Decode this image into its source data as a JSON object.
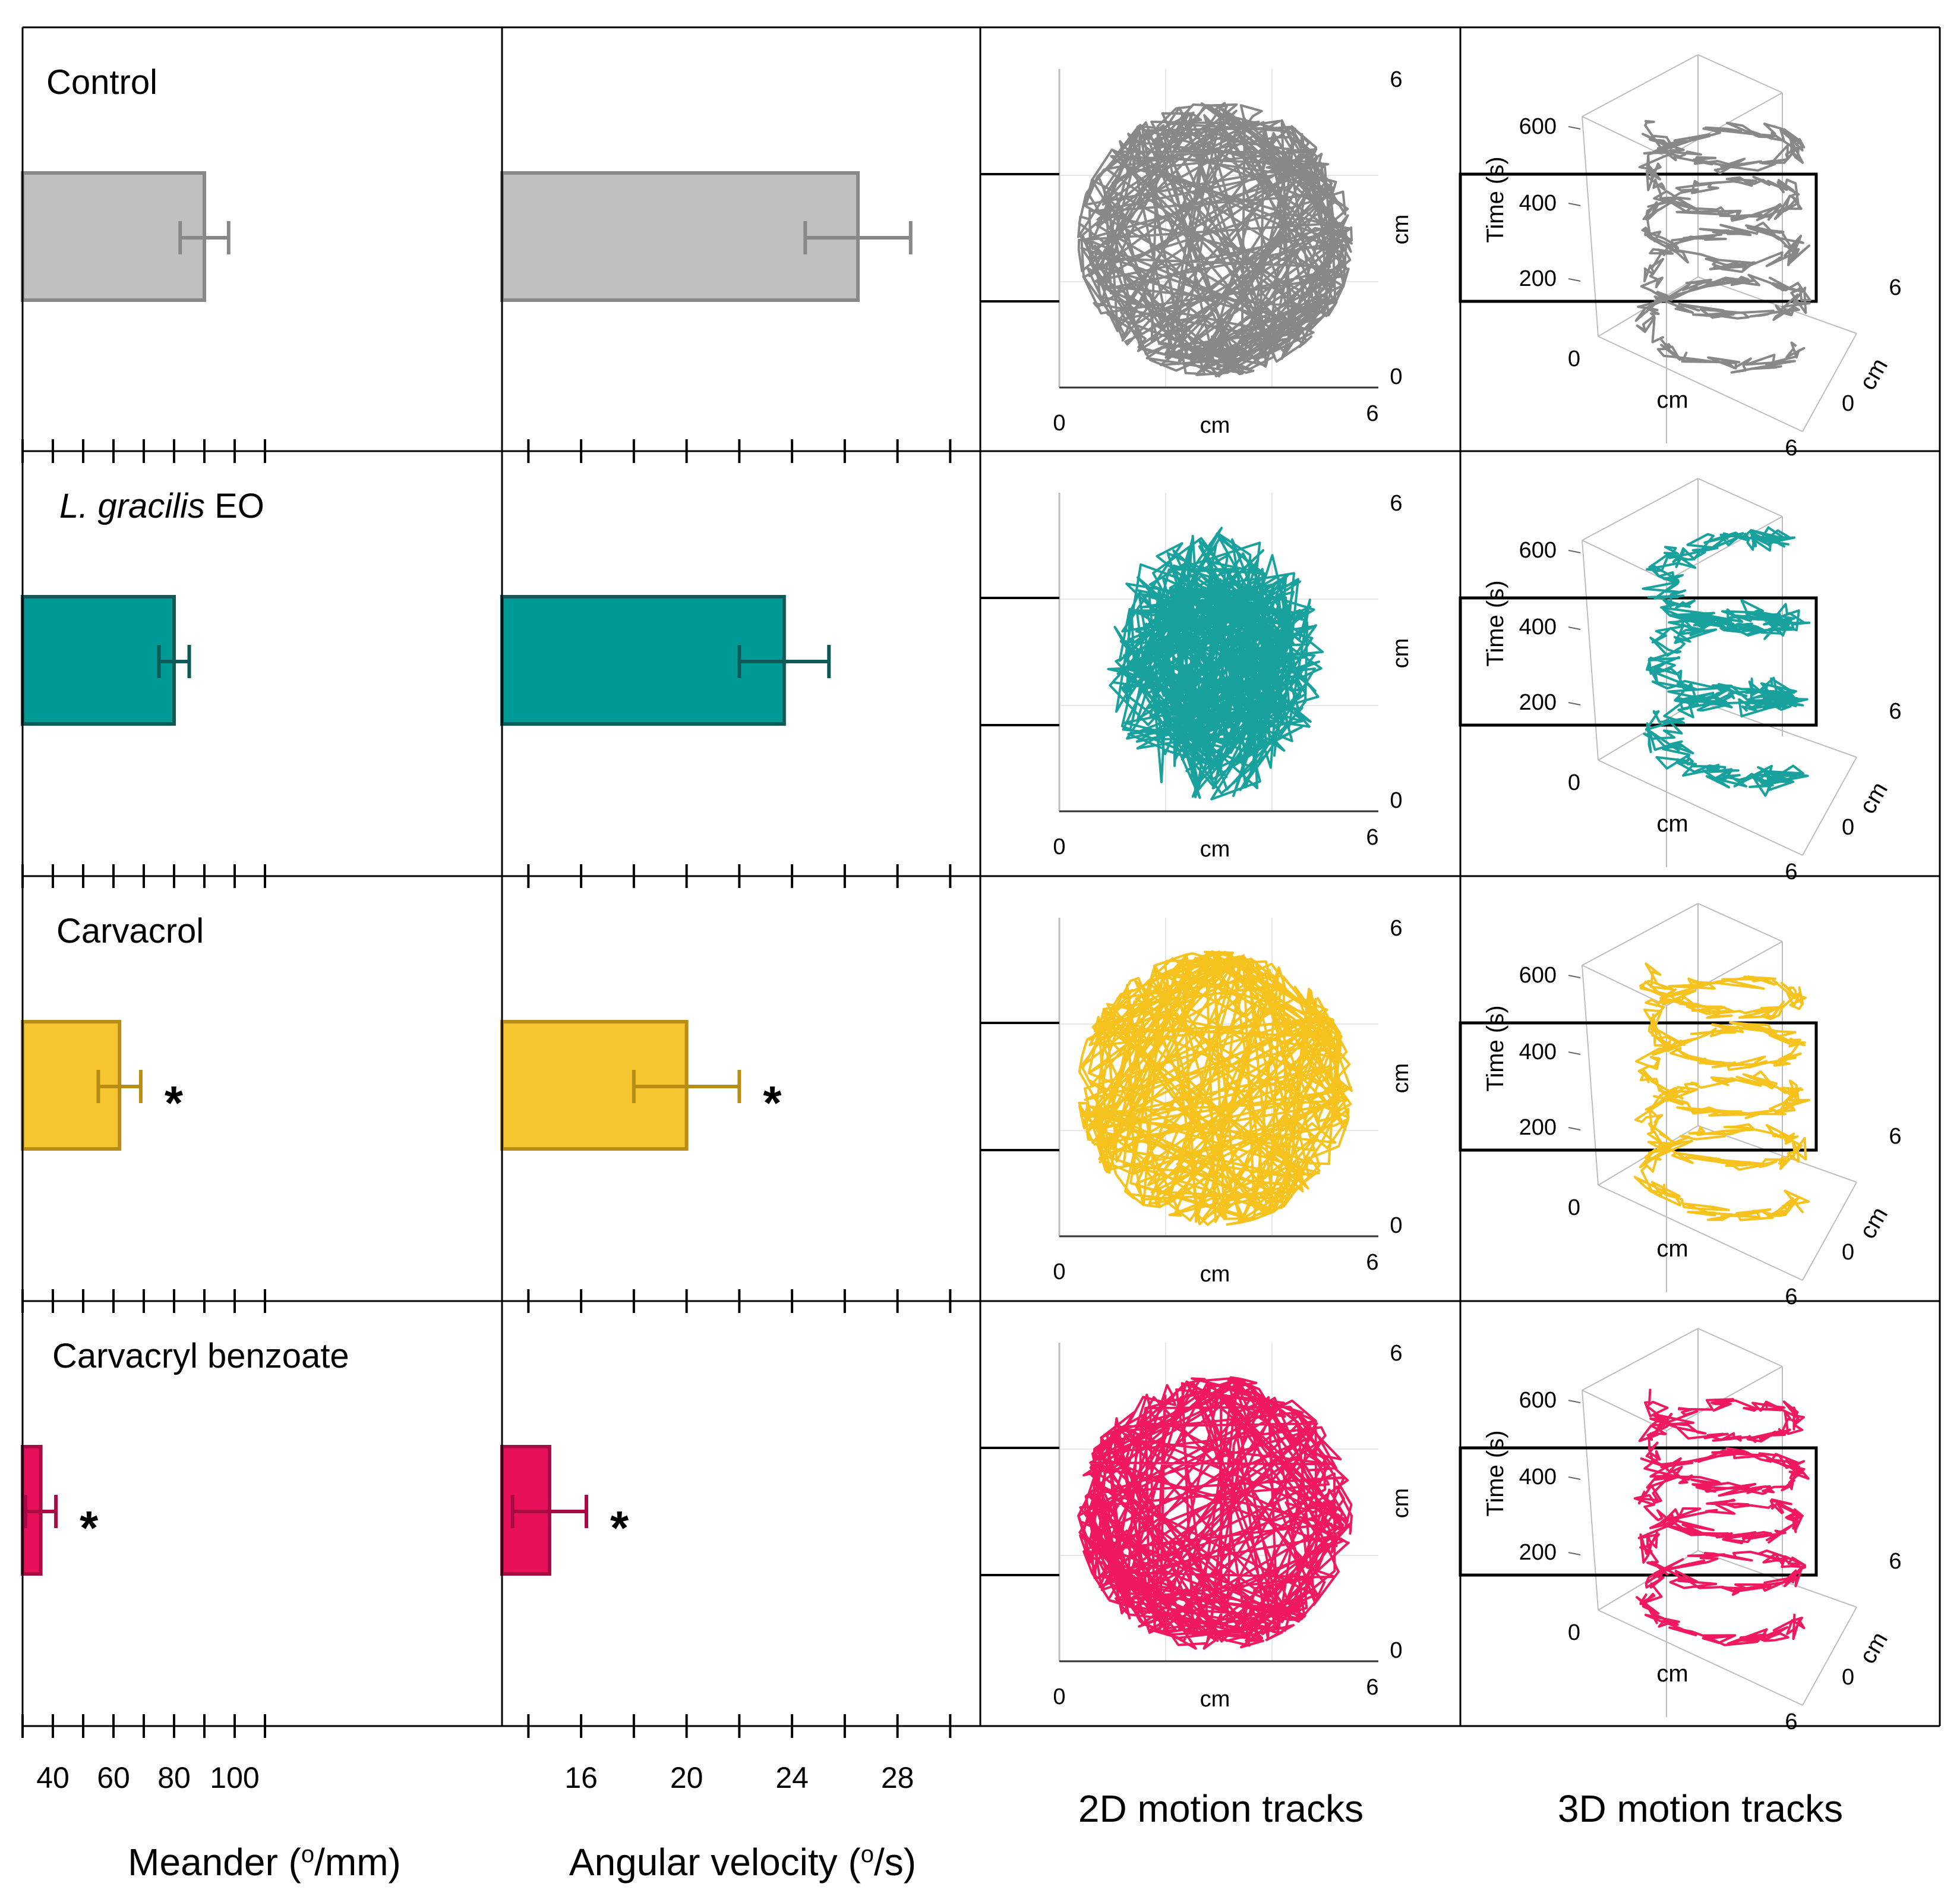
{
  "figure": {
    "columns": [
      {
        "title": "Meander (",
        "sup": "o",
        "title_end": "/mm)"
      },
      {
        "title": "Angular velocity (",
        "sup": "o",
        "title_end": "/s)"
      },
      {
        "title": "2D motion tracks"
      },
      {
        "title": "3D motion tracks"
      }
    ],
    "asterisk": "*",
    "track2d": {
      "xlabel": "cm",
      "ylabel": "cm",
      "x_ticks": [
        "0",
        "6"
      ],
      "y_ticks": [
        "0",
        "6"
      ]
    },
    "track3d": {
      "zlabel": "Time (s)",
      "z_ticks": [
        "200",
        "400",
        "600"
      ],
      "floor_ticks": [
        "0",
        "0",
        "6",
        "6"
      ],
      "floor_labels": [
        "cm",
        "cm"
      ]
    }
  },
  "chart_data": [
    {
      "type": "bar",
      "orientation": "horizontal",
      "xlabel": "Meander (°/mm)",
      "xlim": [
        30,
        110
      ],
      "x_ticks": [
        40,
        60,
        80,
        100
      ],
      "categories": [
        "Control",
        "L. gracilis EO",
        "Carvacrol",
        "Carvacryl benzoate"
      ],
      "values": [
        90,
        80,
        62,
        36
      ],
      "errors": [
        8,
        5,
        7,
        5
      ],
      "significant": [
        false,
        false,
        true,
        true
      ],
      "colors": [
        "#c0c0c0",
        "#009a96",
        "#f5c630",
        "#e8105a"
      ],
      "edge_colors": [
        "#888888",
        "#0d5a56",
        "#b78d15",
        "#a90a45"
      ]
    },
    {
      "type": "bar",
      "orientation": "horizontal",
      "xlabel": "Angular velocity (°/s)",
      "xlim": [
        13,
        31
      ],
      "x_ticks": [
        16,
        20,
        24,
        28
      ],
      "categories": [
        "Control",
        "L. gracilis EO",
        "Carvacrol",
        "Carvacryl benzoate"
      ],
      "values": [
        26.5,
        23.7,
        20,
        14.8
      ],
      "errors": [
        2,
        1.7,
        2,
        1.4
      ],
      "significant": [
        false,
        false,
        true,
        true
      ],
      "colors": [
        "#c0c0c0",
        "#009a96",
        "#f5c630",
        "#e8105a"
      ],
      "edge_colors": [
        "#888888",
        "#0d5a56",
        "#b78d15",
        "#a90a45"
      ]
    }
  ],
  "rows": [
    {
      "label": "Control",
      "italic": "",
      "rest": "Control",
      "color": "#888888"
    },
    {
      "label": "L. gracilis EO",
      "italic": "L. gracilis",
      "rest": " EO",
      "color": "#18a19d"
    },
    {
      "label": "Carvacrol",
      "italic": "",
      "rest": "Carvacrol",
      "color": "#f6c21e"
    },
    {
      "label": "Carvacryl benzoate",
      "italic": "",
      "rest": "Carvacryl benzoate",
      "color": "#f0195f"
    }
  ]
}
